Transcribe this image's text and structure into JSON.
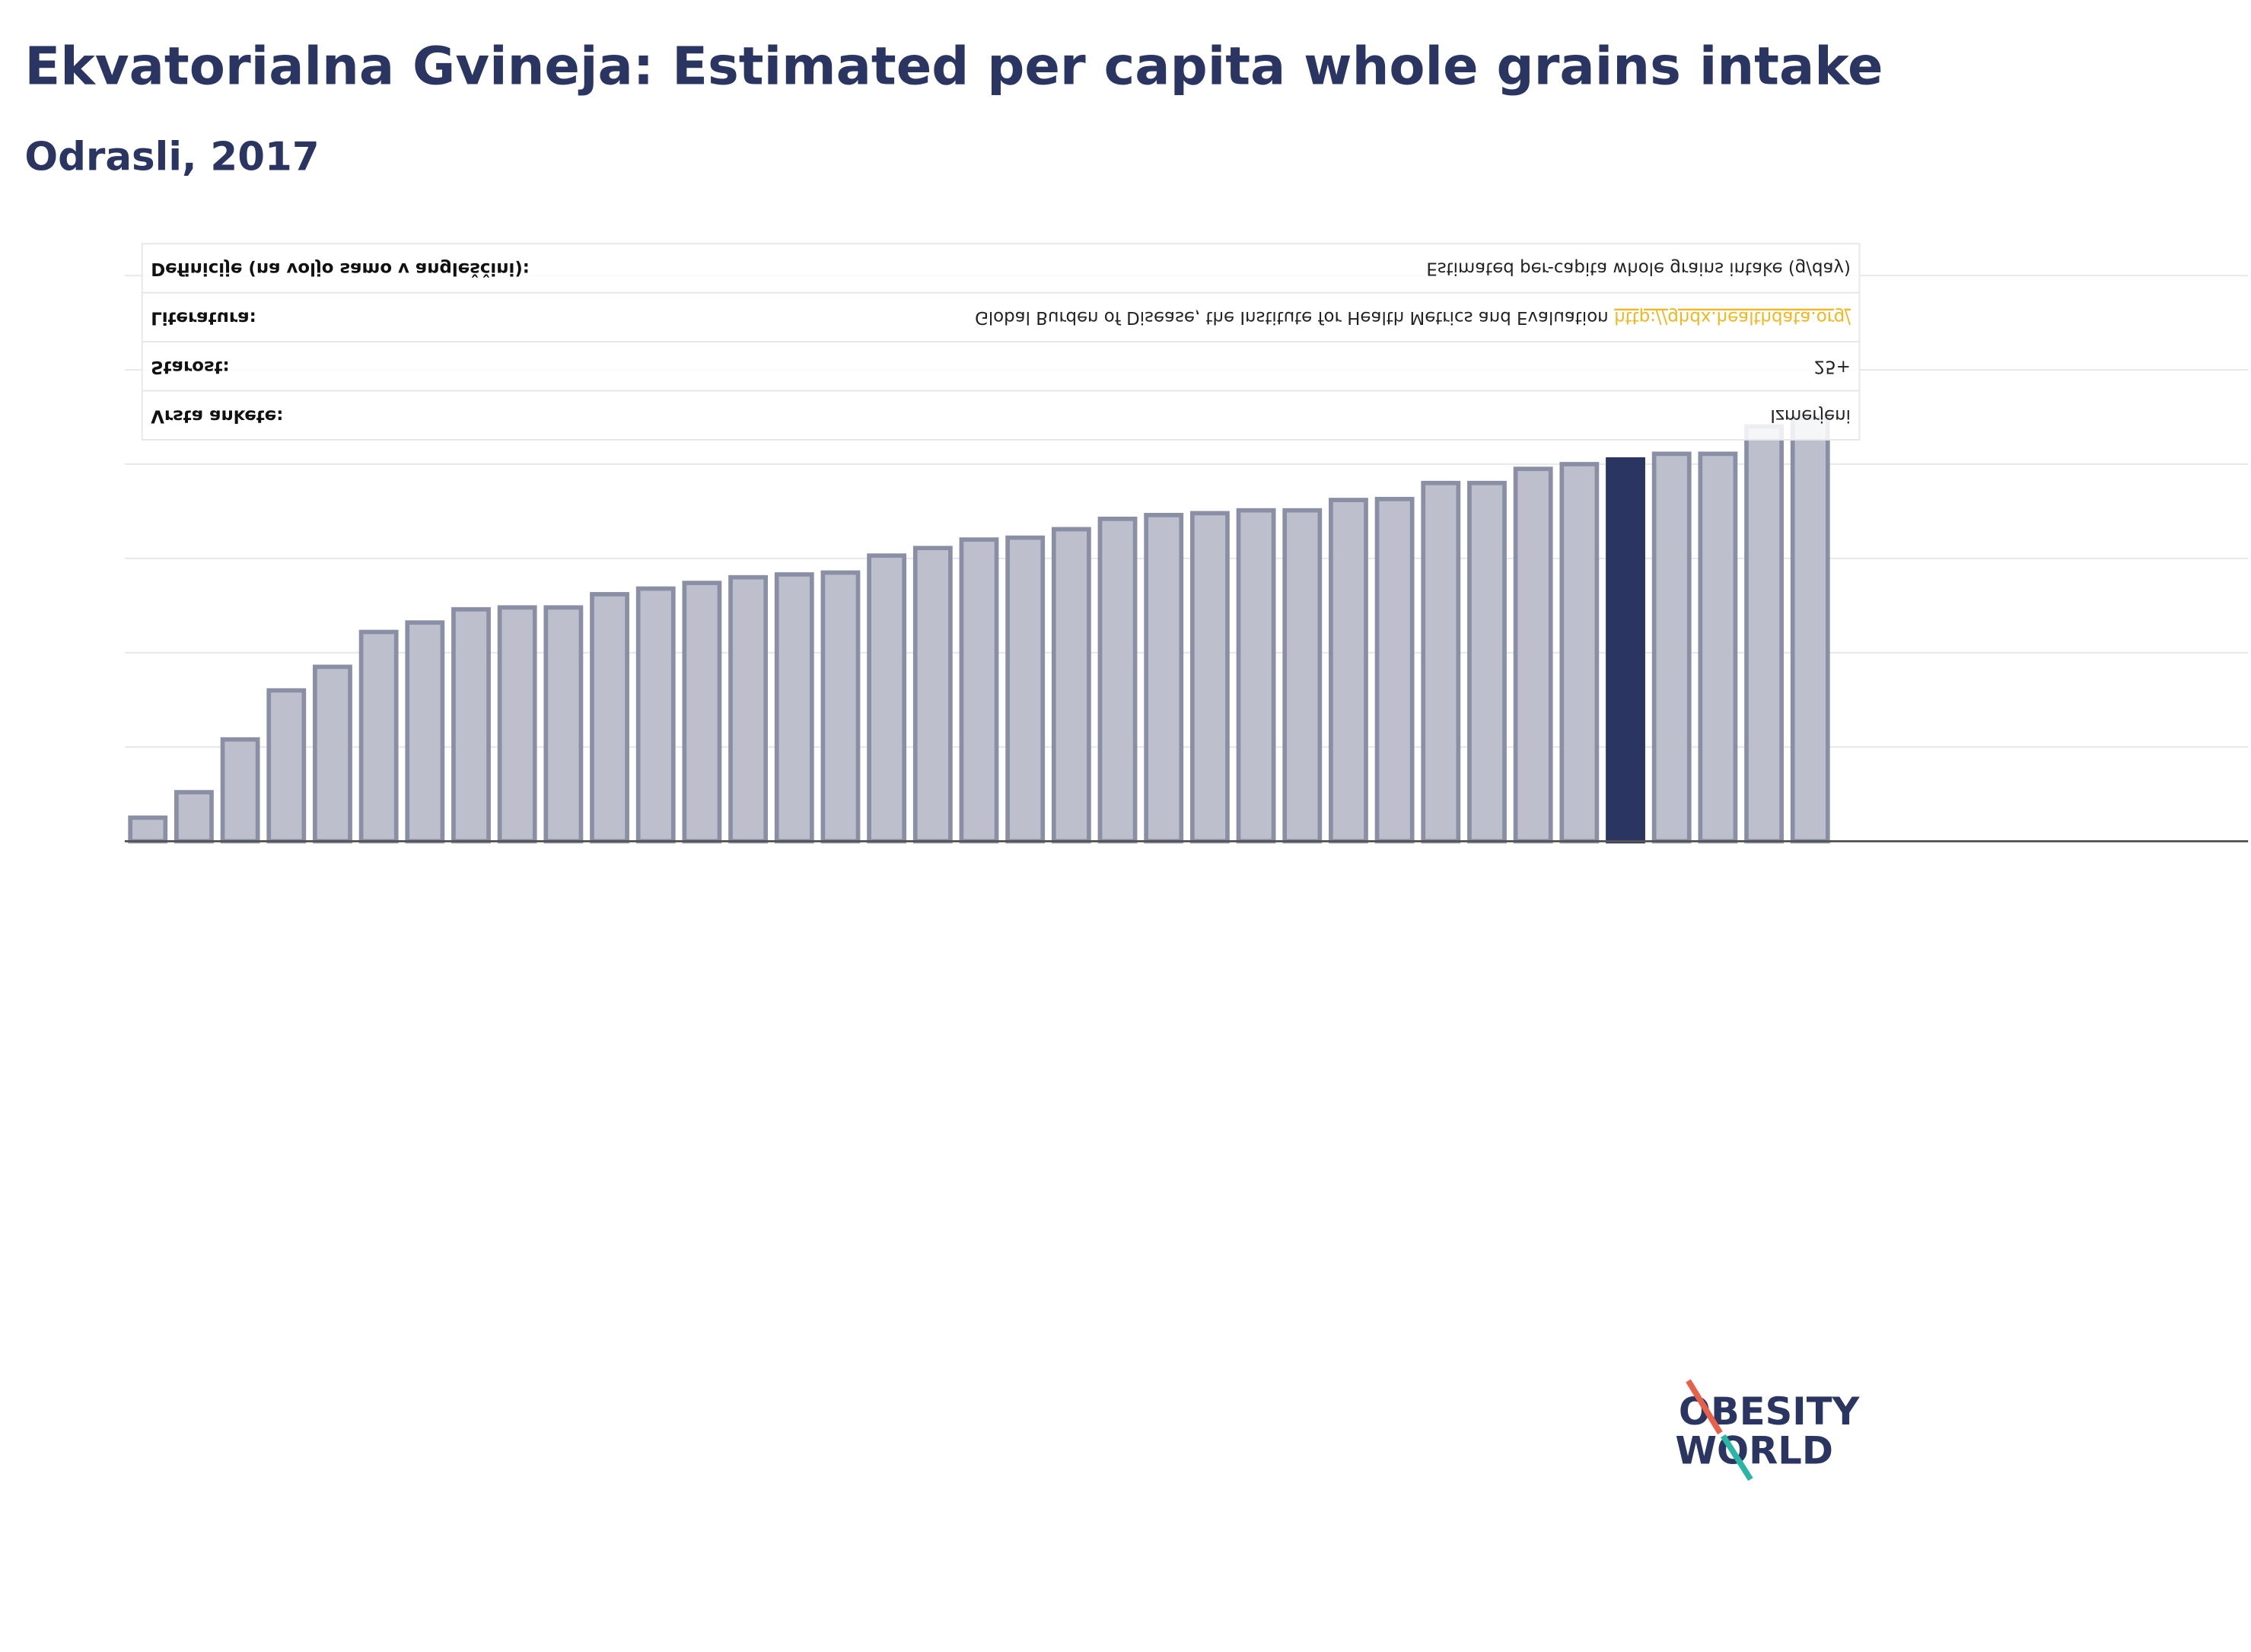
{
  "chart_data": {
    "type": "bar",
    "title": "Ekvatorialna Gvineja: Estimated per capita whole grains intake",
    "subtitle": "Odrasli, 2017",
    "values": [
      0.25,
      0.52,
      1.08,
      1.6,
      1.85,
      2.22,
      2.32,
      2.46,
      2.48,
      2.48,
      2.62,
      2.68,
      2.74,
      2.8,
      2.83,
      2.85,
      3.03,
      3.11,
      3.2,
      3.22,
      3.31,
      3.42,
      3.46,
      3.48,
      3.51,
      3.51,
      3.62,
      3.63,
      3.8,
      3.8,
      3.95,
      4.0,
      4.05,
      4.11,
      4.11,
      4.4,
      4.49
    ],
    "colors": [
      "#bdc0cc",
      "#bdc0cc",
      "#bdc0cc",
      "#bdc0cc",
      "#bdc0cc",
      "#bdc0cc",
      "#bdc0cc",
      "#bdc0cc",
      "#bdc0cc",
      "#bdc0cc",
      "#bdc0cc",
      "#bdc0cc",
      "#bdc0cc",
      "#bdc0cc",
      "#bdc0cc",
      "#bdc0cc",
      "#bdc0cc",
      "#bdc0cc",
      "#bdc0cc",
      "#bdc0cc",
      "#bdc0cc",
      "#bdc0cc",
      "#bdc0cc",
      "#bdc0cc",
      "#bdc0cc",
      "#bdc0cc",
      "#bdc0cc",
      "#bdc0cc",
      "#bdc0cc",
      "#bdc0cc",
      "#bdc0cc",
      "#bdc0cc",
      "#2a3561",
      "#bdc0cc",
      "#bdc0cc",
      "#bdc0cc",
      "#bdc0cc"
    ],
    "ylim": [
      0,
      6
    ],
    "yticks": [
      0,
      1,
      2,
      3,
      4,
      5,
      6
    ],
    "grid": true,
    "info_table": [
      {
        "label": "Definicije (na voljo samo v angleščini):",
        "value": "Estimated per-capita whole grains intake (g/day)"
      },
      {
        "label": "Literatura:",
        "value": "Global Burden of Disease, the Institute for Health Metrics and Evaluation",
        "link": "http://ghdx.healthdata.org/"
      },
      {
        "label": "Starost:",
        "value": "25+"
      },
      {
        "label": "Vrsta ankete:",
        "value": "Izmerjeni"
      }
    ],
    "logo": {
      "top": "OBESITY",
      "bottom": "WORLD"
    }
  }
}
